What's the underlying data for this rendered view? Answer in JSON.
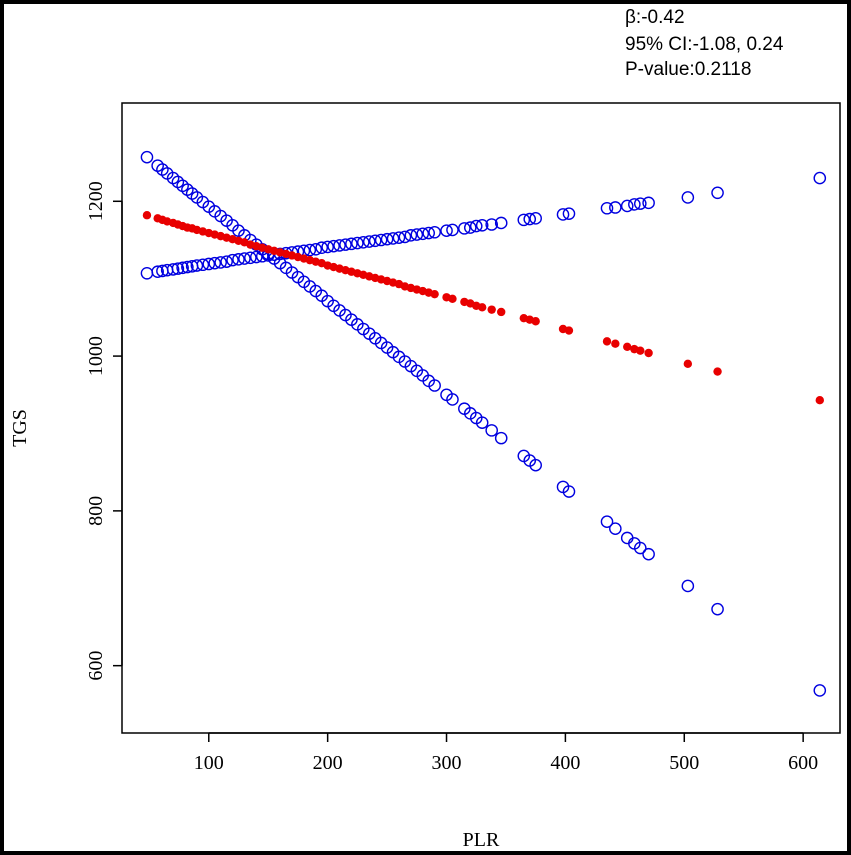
{
  "annotations": {
    "beta": "β:-0.42",
    "ci": "95% CI:-1.08, 0.24",
    "pvalue": "P-value:0.2118"
  },
  "chart_data": {
    "type": "scatter",
    "xlabel": "PLR",
    "ylabel": "TGS",
    "xlim": [
      27,
      631
    ],
    "ylim": [
      513,
      1327
    ],
    "xticks": [
      100,
      200,
      300,
      400,
      500,
      600
    ],
    "yticks": [
      600,
      800,
      1000,
      1200
    ],
    "grid": false,
    "legend": "none",
    "colors": {
      "fit": "#e80000",
      "ci": "#0000e0"
    },
    "series": [
      {
        "role": "fit",
        "marker": "filled-dot",
        "x": [
          48,
          57,
          61,
          65,
          70,
          74,
          78,
          82,
          86,
          90,
          95,
          100,
          105,
          110,
          115,
          120,
          125,
          130,
          135,
          140,
          145,
          150,
          155,
          160,
          165,
          170,
          175,
          180,
          185,
          190,
          195,
          200,
          205,
          210,
          215,
          220,
          225,
          230,
          235,
          240,
          245,
          250,
          255,
          260,
          265,
          270,
          275,
          280,
          285,
          290,
          300,
          305,
          315,
          320,
          325,
          330,
          338,
          346,
          365,
          370,
          375,
          398,
          403,
          435,
          442,
          452,
          458,
          463,
          470,
          503,
          528,
          614
        ],
        "y": [
          1182,
          1178,
          1176,
          1174,
          1172,
          1170,
          1168,
          1166,
          1165,
          1163,
          1161,
          1159,
          1157,
          1155,
          1153,
          1151,
          1149,
          1147,
          1144,
          1142,
          1140,
          1138,
          1136,
          1134,
          1132,
          1130,
          1128,
          1126,
          1124,
          1122,
          1120,
          1117,
          1115,
          1113,
          1111,
          1109,
          1107,
          1105,
          1103,
          1101,
          1099,
          1097,
          1095,
          1093,
          1090,
          1088,
          1086,
          1084,
          1082,
          1080,
          1076,
          1074,
          1070,
          1068,
          1065,
          1063,
          1060,
          1057,
          1049,
          1047,
          1045,
          1035,
          1033,
          1019,
          1016,
          1012,
          1009,
          1007,
          1004,
          990,
          980,
          943
        ]
      },
      {
        "role": "ci-upper",
        "marker": "open-circle",
        "x": [
          48,
          57,
          61,
          65,
          70,
          74,
          78,
          82,
          86,
          90,
          95,
          100,
          105,
          110,
          115,
          120,
          125,
          130,
          135,
          140,
          145,
          150,
          155,
          160,
          165,
          170,
          175,
          180,
          185,
          190,
          195,
          200,
          205,
          210,
          215,
          220,
          225,
          230,
          235,
          240,
          245,
          250,
          255,
          260,
          265,
          270,
          275,
          280,
          285,
          290,
          300,
          305,
          315,
          320,
          325,
          330,
          338,
          346,
          365,
          370,
          375,
          398,
          403,
          435,
          442,
          452,
          458,
          463,
          470,
          503,
          528,
          614
        ],
        "y": [
          1107,
          1109,
          1110,
          1111,
          1112,
          1113,
          1114,
          1115,
          1116,
          1117,
          1118,
          1119,
          1120,
          1121,
          1122,
          1124,
          1125,
          1126,
          1127,
          1128,
          1129,
          1130,
          1131,
          1132,
          1133,
          1134,
          1135,
          1136,
          1137,
          1138,
          1140,
          1141,
          1142,
          1143,
          1144,
          1145,
          1146,
          1147,
          1148,
          1149,
          1150,
          1151,
          1152,
          1153,
          1154,
          1156,
          1157,
          1158,
          1159,
          1160,
          1162,
          1163,
          1165,
          1166,
          1168,
          1169,
          1170,
          1172,
          1176,
          1177,
          1178,
          1183,
          1184,
          1191,
          1192,
          1194,
          1196,
          1197,
          1198,
          1205,
          1211,
          1230
        ]
      },
      {
        "role": "ci-lower",
        "marker": "open-circle",
        "x": [
          48,
          57,
          61,
          65,
          70,
          74,
          78,
          82,
          86,
          90,
          95,
          100,
          105,
          110,
          115,
          120,
          125,
          130,
          135,
          140,
          145,
          150,
          155,
          160,
          165,
          170,
          175,
          180,
          185,
          190,
          195,
          200,
          205,
          210,
          215,
          220,
          225,
          230,
          235,
          240,
          245,
          250,
          255,
          260,
          265,
          270,
          275,
          280,
          285,
          290,
          300,
          305,
          315,
          320,
          325,
          330,
          338,
          346,
          365,
          370,
          375,
          398,
          403,
          435,
          442,
          452,
          458,
          463,
          470,
          503,
          528,
          614
        ],
        "y": [
          1257,
          1246,
          1241,
          1236,
          1230,
          1225,
          1220,
          1215,
          1210,
          1205,
          1199,
          1193,
          1187,
          1181,
          1175,
          1169,
          1162,
          1156,
          1150,
          1144,
          1138,
          1132,
          1126,
          1120,
          1114,
          1108,
          1102,
          1096,
          1090,
          1084,
          1078,
          1071,
          1065,
          1059,
          1053,
          1047,
          1041,
          1035,
          1029,
          1023,
          1017,
          1011,
          1005,
          999,
          993,
          987,
          981,
          975,
          968,
          962,
          950,
          944,
          932,
          926,
          920,
          914,
          904,
          894,
          871,
          865,
          859,
          831,
          825,
          786,
          777,
          765,
          758,
          752,
          744,
          703,
          673,
          568
        ]
      }
    ]
  }
}
